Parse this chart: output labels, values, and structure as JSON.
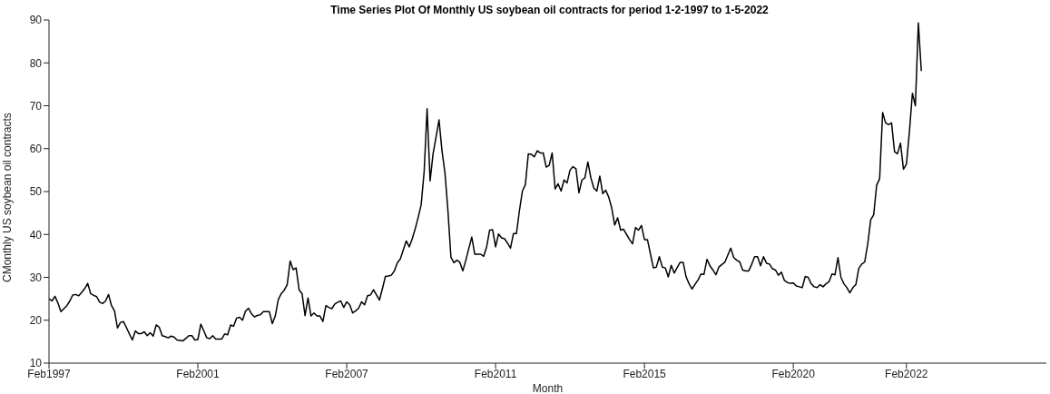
{
  "chart_data": {
    "type": "line",
    "title": "Time Series Plot Of Monthly US soybean oil contracts for period 1-2-1997 to 1-5-2022",
    "xlabel": "Month",
    "ylabel": "CMonthly US soybean oil contracts",
    "categories": [
      "Feb1997",
      null,
      null,
      null,
      null,
      null,
      null,
      null,
      null,
      null,
      null,
      null,
      null,
      null,
      null,
      null,
      null,
      null,
      null,
      null,
      null,
      null,
      null,
      null,
      null,
      null,
      null,
      null,
      null,
      null,
      null,
      null,
      null,
      null,
      null,
      null,
      null,
      null,
      null,
      null,
      null,
      null,
      null,
      null,
      null,
      null,
      null,
      null,
      null,
      null,
      "Feb2001",
      null,
      null,
      null,
      null,
      null,
      null,
      null,
      null,
      null,
      null,
      null,
      null,
      null,
      null,
      null,
      null,
      null,
      null,
      null,
      null,
      null,
      null,
      null,
      null,
      null,
      null,
      null,
      null,
      null,
      null,
      null,
      null,
      null,
      null,
      null,
      null,
      null,
      null,
      null,
      null,
      null,
      null,
      null,
      null,
      null,
      null,
      null,
      null,
      null,
      "Feb2007",
      null,
      null,
      null,
      null,
      null,
      null,
      null,
      null,
      null,
      null,
      null,
      null,
      null,
      null,
      null,
      null,
      null,
      null,
      null,
      null,
      null,
      null,
      null,
      null,
      null,
      null,
      null,
      null,
      null,
      null,
      null,
      null,
      null,
      null,
      null,
      null,
      null,
      null,
      null,
      null,
      null,
      null,
      null,
      null,
      null,
      null,
      null,
      null,
      null,
      "Feb2011",
      null,
      null,
      null,
      null,
      null,
      null,
      null,
      null,
      null,
      null,
      null,
      null,
      null,
      null,
      null,
      null,
      null,
      null,
      null,
      null,
      null,
      null,
      null,
      null,
      null,
      null,
      null,
      null,
      null,
      null,
      null,
      null,
      null,
      null,
      null,
      null,
      null,
      null,
      null,
      null,
      null,
      null,
      null,
      null,
      null,
      null,
      null,
      null,
      null,
      "Feb2015",
      null,
      null,
      null,
      null,
      null,
      null,
      null,
      null,
      null,
      null,
      null,
      null,
      null,
      null,
      null,
      null,
      null,
      null,
      null,
      null,
      null,
      null,
      null,
      null,
      null,
      null,
      null,
      null,
      null,
      null,
      null,
      null,
      null,
      null,
      null,
      null,
      null,
      null,
      null,
      null,
      null,
      null,
      null,
      null,
      null,
      null,
      null,
      null,
      null,
      "Feb2020",
      null,
      null,
      null,
      null,
      null,
      null,
      null,
      null,
      null,
      null,
      null,
      null,
      null,
      null,
      null,
      null,
      null,
      null,
      null,
      null,
      null,
      null,
      null,
      null,
      null,
      null,
      null,
      null,
      null,
      null,
      null,
      null,
      null,
      null,
      null,
      null,
      null,
      "Feb2022",
      null,
      null,
      null,
      null,
      null,
      null,
      null,
      null,
      null,
      null,
      null,
      null,
      null,
      null,
      null,
      null,
      null,
      null,
      null,
      null,
      null,
      null,
      null,
      null,
      null,
      null,
      null,
      null,
      null,
      null,
      null,
      null,
      null,
      null,
      null,
      null,
      null,
      null,
      null,
      null,
      null,
      null,
      null,
      null,
      null,
      null,
      null
    ],
    "ylim": [
      10,
      90
    ],
    "yticks": [
      10,
      20,
      30,
      40,
      50,
      60,
      70,
      80,
      90
    ],
    "grid": false,
    "series": [
      {
        "color": "#000000",
        "values": [
          25.0,
          24.5,
          25.6,
          24.0,
          22.0,
          22.7,
          23.4,
          24.5,
          25.9,
          26.0,
          25.7,
          26.5,
          27.4,
          28.6,
          26.2,
          25.8,
          25.5,
          24.2,
          23.9,
          24.5,
          26.0,
          23.4,
          22.2,
          18.2,
          19.5,
          19.7,
          18.3,
          16.8,
          15.4,
          17.5,
          16.9,
          16.9,
          17.3,
          16.4,
          17.1,
          16.3,
          18.9,
          18.4,
          16.4,
          16.2,
          15.9,
          16.3,
          16.1,
          15.4,
          15.3,
          15.2,
          15.8,
          16.4,
          16.4,
          15.4,
          15.5,
          19.1,
          17.5,
          15.9,
          15.7,
          16.4,
          15.6,
          15.6,
          15.6,
          16.8,
          16.6,
          18.9,
          18.6,
          20.5,
          20.7,
          20.0,
          22.1,
          22.8,
          21.5,
          20.8,
          21.1,
          21.3,
          22.0,
          22.0,
          22.0,
          19.2,
          21.0,
          24.8,
          26.2,
          27.0,
          28.3,
          33.8,
          31.8,
          32.2,
          27.1,
          26.2,
          21.1,
          25.2,
          21.0,
          21.7,
          21.0,
          21.0,
          19.7,
          23.4,
          23.0,
          22.7,
          23.8,
          24.2,
          24.5,
          23.0,
          24.3,
          23.6,
          21.7,
          22.2,
          22.8,
          24.3,
          23.6,
          25.7,
          25.9,
          27.1,
          25.9,
          24.7,
          27.4,
          30.2,
          30.3,
          30.5,
          31.5,
          33.4,
          34.3,
          36.4,
          38.5,
          37.1,
          39.0,
          41.3,
          44.0,
          46.9,
          54.6,
          69.3,
          52.5,
          58.8,
          62.7,
          66.7,
          59.5,
          54.3,
          45.5,
          34.7,
          33.4,
          34.0,
          33.5,
          31.5,
          34.0,
          36.7,
          39.4,
          35.4,
          35.4,
          35.4,
          34.9,
          37.1,
          41.0,
          41.1,
          37.1,
          40.1,
          39.2,
          39.0,
          38.0,
          36.8,
          40.2,
          40.2,
          45.5,
          50.1,
          51.6,
          58.8,
          58.7,
          58.1,
          59.5,
          59.0,
          59.0,
          55.7,
          56.1,
          59.0,
          50.6,
          51.8,
          50.1,
          52.7,
          52.0,
          55.0,
          55.8,
          55.3,
          49.7,
          52.7,
          53.2,
          56.9,
          53.2,
          50.8,
          50.1,
          53.6,
          49.5,
          50.3,
          48.7,
          46.2,
          42.2,
          43.9,
          41.0,
          41.2,
          40.0,
          38.8,
          37.8,
          41.6,
          41.0,
          42.1,
          38.8,
          38.8,
          35.5,
          32.2,
          32.4,
          34.8,
          32.4,
          32.2,
          30.1,
          32.8,
          31.0,
          32.3,
          33.5,
          33.5,
          30.1,
          28.5,
          27.3,
          28.4,
          29.4,
          30.8,
          30.7,
          34.2,
          32.7,
          31.7,
          30.6,
          32.4,
          33.0,
          33.5,
          35.2,
          36.8,
          34.6,
          34.0,
          33.6,
          31.7,
          31.5,
          31.5,
          33.0,
          34.8,
          34.8,
          32.7,
          34.8,
          33.3,
          33.1,
          32.0,
          31.7,
          30.5,
          31.2,
          29.3,
          28.8,
          28.6,
          28.7,
          28.0,
          27.8,
          27.6,
          30.2,
          30.0,
          28.5,
          27.8,
          27.6,
          28.3,
          27.8,
          28.5,
          29.0,
          30.8,
          30.6,
          34.6,
          30.0,
          28.5,
          27.6,
          26.4,
          27.6,
          28.3,
          32.1,
          33.1,
          33.6,
          37.8,
          43.4,
          44.6,
          51.5,
          53.0,
          68.4,
          66.0,
          65.6,
          66.0,
          59.3,
          58.8,
          61.3,
          55.2,
          56.4,
          64.0,
          72.9,
          70.0,
          89.3,
          78.1,
          null,
          null,
          null,
          null,
          null,
          null,
          null,
          null,
          null,
          null,
          null,
          null,
          null,
          null,
          null,
          null,
          null,
          null,
          null,
          null,
          null,
          null,
          null,
          null,
          null,
          null,
          null,
          null,
          null,
          null,
          null,
          null,
          null,
          null,
          null,
          null,
          null,
          null,
          null,
          null,
          null,
          null
        ]
      }
    ]
  }
}
